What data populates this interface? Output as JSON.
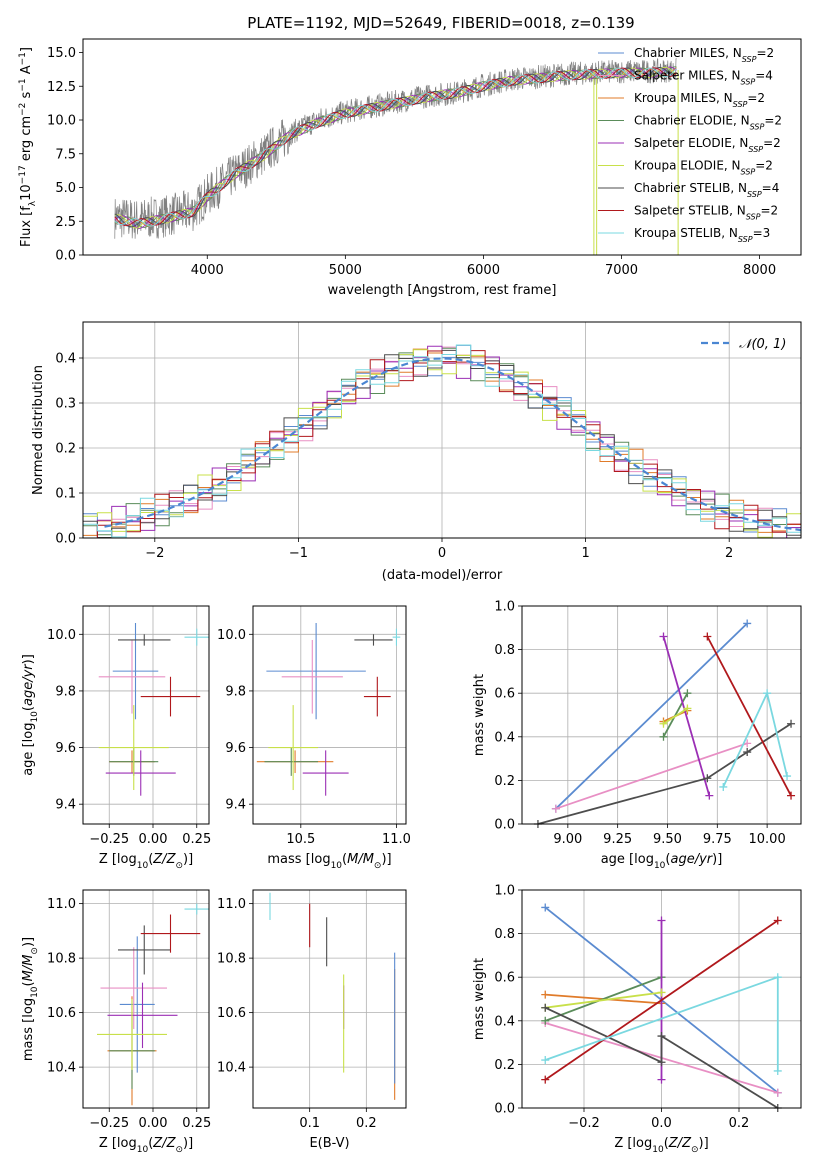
{
  "figure": {
    "title": "PLATE=1192, MJD=52649, FIBERID=0018, z=0.139"
  },
  "colors": {
    "grid": "#b0b0b0",
    "normal_curve": "#4a86d2"
  },
  "chart_data": [
    {
      "id": "spectrum",
      "type": "line",
      "xlabel": "wavelength [Angstrom, rest frame]",
      "ylabel": "Flux [f_λ10^-17 erg cm^-2 s^-1 A^-1]",
      "xlim": [
        3100,
        8300
      ],
      "ylim": [
        0,
        16
      ],
      "xticks": [
        4000,
        5000,
        6000,
        7000,
        8000
      ],
      "yticks": [
        0.0,
        2.5,
        5.0,
        7.5,
        10.0,
        12.5,
        15.0
      ],
      "grid": false,
      "legend_position": "top-right",
      "data_series": {
        "name": "data",
        "color": "#808080",
        "x": [
          3330,
          3500,
          3700,
          3900,
          4000,
          4200,
          4400,
          4600,
          4800,
          5000,
          5200,
          5400,
          5600,
          5800,
          6000,
          6200,
          6400,
          6600,
          6800,
          7000,
          7200,
          7400
        ],
        "y": [
          2.8,
          2.6,
          2.9,
          3.3,
          4.4,
          6.0,
          7.4,
          9.0,
          10.0,
          10.6,
          11.0,
          11.4,
          11.8,
          12.0,
          12.6,
          13.0,
          13.2,
          13.4,
          13.5,
          13.6,
          13.6,
          13.7
        ]
      },
      "series": [
        {
          "name": "Chabrier MILES, N_SSP=2",
          "color": "#5b8bd0"
        },
        {
          "name": "Salpeter MILES, N_SSP=4",
          "color": "#e88fc4"
        },
        {
          "name": "Kroupa MILES, N_SSP=2",
          "color": "#e07b2a"
        },
        {
          "name": "Chabrier ELODIE, N_SSP=2",
          "color": "#5a8c5a"
        },
        {
          "name": "Salpeter ELODIE, N_SSP=2",
          "color": "#9b2fb5"
        },
        {
          "name": "Kroupa ELODIE, N_SSP=2",
          "color": "#c8e04a"
        },
        {
          "name": "Chabrier STELIB, N_SSP=4",
          "color": "#4d4d4d"
        },
        {
          "name": "Salpeter STELIB, N_SSP=2",
          "color": "#b0181c"
        },
        {
          "name": "Kroupa STELIB, N_SSP=3",
          "color": "#7ad8e0"
        }
      ],
      "model_x": [
        3330,
        3500,
        3700,
        3900,
        4000,
        4200,
        4400,
        4600,
        4800,
        5000,
        5200,
        5400,
        5600,
        5800,
        6000,
        6200,
        6400,
        6600,
        6800,
        7000,
        7200,
        7400
      ],
      "model_y": [
        2.7,
        2.3,
        2.7,
        3.2,
        4.3,
        6.0,
        7.3,
        8.9,
        9.8,
        10.5,
        10.9,
        11.3,
        11.7,
        12.0,
        12.5,
        12.9,
        13.1,
        13.3,
        13.4,
        13.5,
        13.5,
        13.6
      ]
    },
    {
      "id": "residuals",
      "type": "histogram",
      "xlabel": "(data-model)/error",
      "ylabel": "Normed distribution",
      "xlim": [
        -2.5,
        2.5
      ],
      "ylim": [
        0,
        0.48
      ],
      "xticks": [
        -2,
        -1,
        0,
        1,
        2
      ],
      "yticks": [
        0.0,
        0.1,
        0.2,
        0.3,
        0.4
      ],
      "grid": true,
      "legend_position": "top-right",
      "legend": [
        "N(0,1)"
      ],
      "bin_width": 0.1,
      "hist_envelope": [
        0.03,
        0.04,
        0.05,
        0.06,
        0.07,
        0.09,
        0.11,
        0.13,
        0.16,
        0.19,
        0.22,
        0.25,
        0.28,
        0.31,
        0.34,
        0.37,
        0.39,
        0.4,
        0.41,
        0.4,
        0.39,
        0.37,
        0.34,
        0.31,
        0.28,
        0.25,
        0.22,
        0.19,
        0.16,
        0.13,
        0.11,
        0.09,
        0.07,
        0.05,
        0.04,
        0.03
      ]
    },
    {
      "id": "age-vs-z",
      "type": "scatter",
      "xlabel": "Z [log10(Z/Z⊙)]",
      "ylabel": "age [log10(age/yr)]",
      "xlim": [
        -0.4,
        0.32
      ],
      "ylim": [
        9.33,
        10.1
      ],
      "xticks": [
        -0.25,
        0.0,
        0.25
      ],
      "xticklabels": [
        "−0.25",
        "0.00",
        "0.25"
      ],
      "yticks": [
        9.4,
        9.6,
        9.8,
        10.0
      ],
      "grid": true,
      "points": [
        {
          "color": "#5b8bd0",
          "x": -0.1,
          "xerr": 0.13,
          "y": 9.87,
          "yerr": 0.17
        },
        {
          "color": "#e88fc4",
          "x": -0.12,
          "xerr": 0.19,
          "y": 9.85,
          "yerr": 0.13
        },
        {
          "color": "#e07b2a",
          "x": -0.12,
          "xerr": 0.13,
          "y": 9.55,
          "yerr": 0.04
        },
        {
          "color": "#5a8c5a",
          "x": -0.11,
          "xerr": 0.14,
          "y": 9.55,
          "yerr": 0.05
        },
        {
          "color": "#9b2fb5",
          "x": -0.07,
          "xerr": 0.2,
          "y": 9.51,
          "yerr": 0.08
        },
        {
          "color": "#c8e04a",
          "x": -0.11,
          "xerr": 0.2,
          "y": 9.6,
          "yerr": 0.15
        },
        {
          "color": "#4d4d4d",
          "x": -0.05,
          "xerr": 0.15,
          "y": 9.98,
          "yerr": 0.02
        },
        {
          "color": "#b0181c",
          "x": 0.1,
          "xerr": 0.17,
          "y": 9.78,
          "yerr": 0.07
        },
        {
          "color": "#7ad8e0",
          "x": 0.25,
          "xerr": 0.07,
          "y": 9.99,
          "yerr": 0.03
        }
      ]
    },
    {
      "id": "age-vs-mass",
      "type": "scatter",
      "xlabel": "mass [log10(M/M⊙)]",
      "ylabel": "",
      "xlim": [
        10.25,
        11.05
      ],
      "ylim": [
        9.33,
        10.1
      ],
      "xticks": [
        10.5,
        11.0
      ],
      "yticks": [
        9.4,
        9.6,
        9.8,
        10.0
      ],
      "grid": true,
      "points": [
        {
          "color": "#5b8bd0",
          "x": 10.58,
          "xerr": 0.26,
          "y": 9.87,
          "yerr": 0.17
        },
        {
          "color": "#e88fc4",
          "x": 10.56,
          "xerr": 0.16,
          "y": 9.85,
          "yerr": 0.13
        },
        {
          "color": "#e07b2a",
          "x": 10.47,
          "xerr": 0.2,
          "y": 9.55,
          "yerr": 0.04
        },
        {
          "color": "#5a8c5a",
          "x": 10.45,
          "xerr": 0.14,
          "y": 9.55,
          "yerr": 0.05
        },
        {
          "color": "#9b2fb5",
          "x": 10.63,
          "xerr": 0.12,
          "y": 9.51,
          "yerr": 0.08
        },
        {
          "color": "#c8e04a",
          "x": 10.46,
          "xerr": 0.13,
          "y": 9.6,
          "yerr": 0.15
        },
        {
          "color": "#4d4d4d",
          "x": 10.88,
          "xerr": 0.1,
          "y": 9.98,
          "yerr": 0.02
        },
        {
          "color": "#b0181c",
          "x": 10.9,
          "xerr": 0.07,
          "y": 9.78,
          "yerr": 0.07
        },
        {
          "color": "#7ad8e0",
          "x": 11.0,
          "xerr": 0.02,
          "y": 9.99,
          "yerr": 0.03
        }
      ]
    },
    {
      "id": "weight-vs-age",
      "type": "line",
      "xlabel": "age [log10(age/yr)]",
      "ylabel": "mass weight",
      "xlim": [
        8.77,
        10.17
      ],
      "ylim": [
        0,
        1.0
      ],
      "xticks": [
        9.0,
        9.25,
        9.5,
        9.75,
        10.0
      ],
      "xticklabels": [
        "9.00",
        "9.25",
        "9.50",
        "9.75",
        "10.00"
      ],
      "yticks": [
        0.0,
        0.2,
        0.4,
        0.6,
        0.8,
        1.0
      ],
      "grid": true,
      "series": [
        {
          "color": "#5b8bd0",
          "x": [
            8.94,
            9.9
          ],
          "y": [
            0.07,
            0.92
          ]
        },
        {
          "color": "#e88fc4",
          "x": [
            8.94,
            9.9
          ],
          "y": [
            0.07,
            0.37
          ]
        },
        {
          "color": "#e07b2a",
          "x": [
            9.48,
            9.6
          ],
          "y": [
            0.47,
            0.52
          ]
        },
        {
          "color": "#5a8c5a",
          "x": [
            9.48,
            9.6
          ],
          "y": [
            0.4,
            0.6
          ]
        },
        {
          "color": "#9b2fb5",
          "x": [
            9.48,
            9.71
          ],
          "y": [
            0.86,
            0.13
          ]
        },
        {
          "color": "#c8e04a",
          "x": [
            9.48,
            9.6
          ],
          "y": [
            0.46,
            0.53
          ]
        },
        {
          "color": "#4d4d4d",
          "x": [
            8.85,
            9.7,
            9.9,
            10.12
          ],
          "y": [
            0.0,
            0.21,
            0.33,
            0.46
          ]
        },
        {
          "color": "#b0181c",
          "x": [
            9.7,
            10.12
          ],
          "y": [
            0.86,
            0.13
          ]
        },
        {
          "color": "#7ad8e0",
          "x": [
            9.78,
            10.0,
            10.1
          ],
          "y": [
            0.17,
            0.6,
            0.22
          ]
        }
      ]
    },
    {
      "id": "mass-vs-z",
      "type": "scatter",
      "xlabel": "Z [log10(Z/Z⊙)]",
      "ylabel": "mass [log10(M/M⊙)]",
      "xlim": [
        -0.4,
        0.32
      ],
      "ylim": [
        10.25,
        11.05
      ],
      "xticks": [
        -0.25,
        0.0,
        0.25
      ],
      "xticklabels": [
        "−0.25",
        "0.00",
        "0.25"
      ],
      "yticks": [
        10.4,
        10.6,
        10.8,
        11.0
      ],
      "grid": true,
      "points": [
        {
          "color": "#5b8bd0",
          "x": -0.09,
          "xerr": 0.1,
          "y": 10.63,
          "yerr": 0.25
        },
        {
          "color": "#e88fc4",
          "x": -0.11,
          "xerr": 0.19,
          "y": 10.69,
          "yerr": 0.15
        },
        {
          "color": "#e07b2a",
          "x": -0.12,
          "xerr": 0.14,
          "y": 10.46,
          "yerr": 0.2
        },
        {
          "color": "#5a8c5a",
          "x": -0.12,
          "xerr": 0.13,
          "y": 10.46,
          "yerr": 0.14
        },
        {
          "color": "#9b2fb5",
          "x": -0.06,
          "xerr": 0.2,
          "y": 10.59,
          "yerr": 0.12
        },
        {
          "color": "#c8e04a",
          "x": -0.12,
          "xerr": 0.2,
          "y": 10.52,
          "yerr": 0.13
        },
        {
          "color": "#4d4d4d",
          "x": -0.05,
          "xerr": 0.15,
          "y": 10.83,
          "yerr": 0.09
        },
        {
          "color": "#b0181c",
          "x": 0.1,
          "xerr": 0.17,
          "y": 10.89,
          "yerr": 0.07
        },
        {
          "color": "#7ad8e0",
          "x": 0.25,
          "xerr": 0.07,
          "y": 10.98,
          "yerr": 0.02
        }
      ]
    },
    {
      "id": "mass-vs-ebv",
      "type": "scatter",
      "xlabel": "E(B-V)",
      "ylabel": "",
      "xlim": [
        0.0,
        0.27
      ],
      "ylim": [
        10.25,
        11.05
      ],
      "xticks": [
        0.1,
        0.2
      ],
      "yticks": [
        10.4,
        10.6,
        10.8,
        11.0
      ],
      "grid": true,
      "points": [
        {
          "color": "#7ad8e0",
          "x": 0.03,
          "y": 10.99,
          "yerr": 0.05
        },
        {
          "color": "#b0181c",
          "x": 0.1,
          "y": 10.92,
          "yerr": 0.08
        },
        {
          "color": "#4d4d4d",
          "x": 0.13,
          "y": 10.86,
          "yerr": 0.09
        },
        {
          "color": "#9b2fb5",
          "x": 0.16,
          "y": 10.62,
          "yerr": 0.08
        },
        {
          "color": "#c8e04a",
          "x": 0.16,
          "y": 10.56,
          "yerr": 0.18
        },
        {
          "color": "#e07b2a",
          "x": 0.25,
          "y": 10.52,
          "yerr": 0.24
        },
        {
          "color": "#5b8bd0",
          "x": 0.25,
          "y": 10.58,
          "yerr": 0.24
        }
      ]
    },
    {
      "id": "weight-vs-z",
      "type": "line",
      "xlabel": "Z [log10(Z/Z⊙)]",
      "ylabel": "mass weight",
      "xlim": [
        -0.36,
        0.36
      ],
      "ylim": [
        0,
        1.0
      ],
      "xticks": [
        -0.2,
        0.0,
        0.2
      ],
      "xticklabels": [
        "−0.2",
        "0.0",
        "0.2"
      ],
      "yticks": [
        0.0,
        0.2,
        0.4,
        0.6,
        0.8,
        1.0
      ],
      "grid": true,
      "series": [
        {
          "color": "#5b8bd0",
          "x": [
            -0.3,
            0.3
          ],
          "y": [
            0.92,
            0.07
          ]
        },
        {
          "color": "#e88fc4",
          "x": [
            -0.3,
            0.3
          ],
          "y": [
            0.39,
            0.07
          ]
        },
        {
          "color": "#e07b2a",
          "x": [
            -0.3,
            0.0
          ],
          "y": [
            0.52,
            0.48
          ]
        },
        {
          "color": "#5a8c5a",
          "x": [
            -0.3,
            0.0
          ],
          "y": [
            0.4,
            0.6
          ]
        },
        {
          "color": "#9b2fb5",
          "x": [
            0.0,
            0.0
          ],
          "y": [
            0.86,
            0.13
          ]
        },
        {
          "color": "#c8e04a",
          "x": [
            -0.3,
            0.0
          ],
          "y": [
            0.46,
            0.53
          ]
        },
        {
          "color": "#4d4d4d",
          "x": [
            -0.3,
            0.0,
            0.0,
            0.3
          ],
          "y": [
            0.46,
            0.21,
            0.33,
            0.0
          ]
        },
        {
          "color": "#b0181c",
          "x": [
            -0.3,
            0.3
          ],
          "y": [
            0.13,
            0.86
          ]
        },
        {
          "color": "#7ad8e0",
          "x": [
            -0.3,
            0.3,
            0.3
          ],
          "y": [
            0.22,
            0.6,
            0.17
          ]
        }
      ]
    }
  ]
}
